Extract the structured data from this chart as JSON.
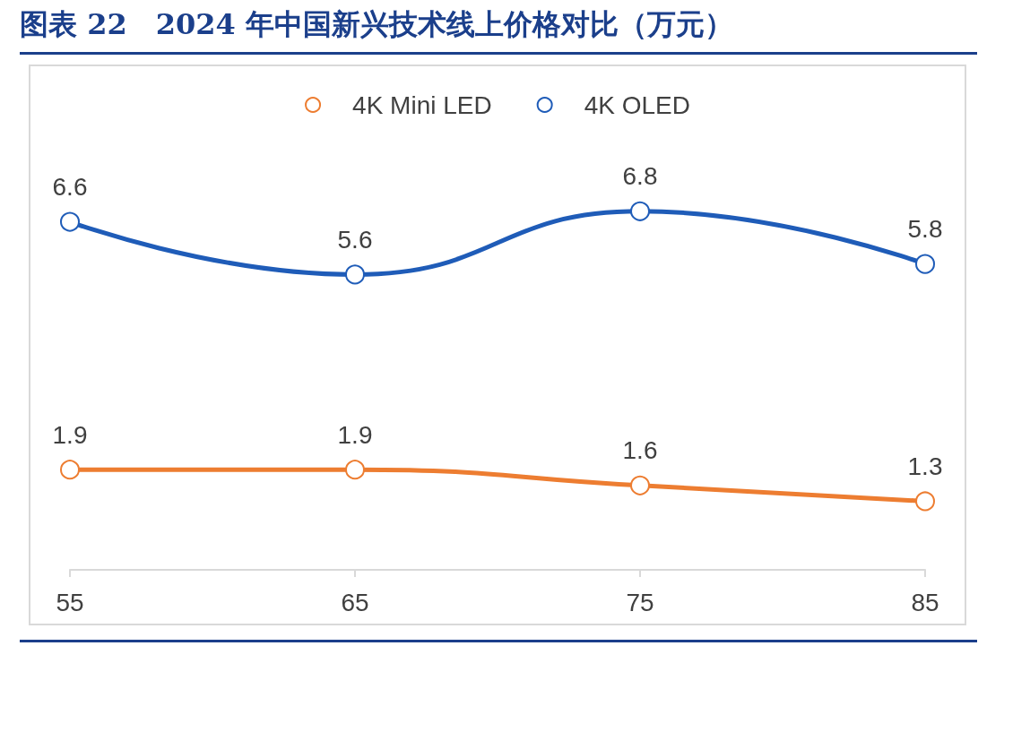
{
  "chart_data": {
    "type": "line",
    "title": "图表 22　2024 年中国新兴技术线上价格对比（万元）",
    "categories": [
      "55",
      "65",
      "75",
      "85"
    ],
    "series": [
      {
        "name": "4K Mini LED",
        "color": "#ed7d31",
        "values": [
          1.9,
          1.9,
          1.6,
          1.3
        ]
      },
      {
        "name": "4K OLED",
        "color": "#1f5cb8",
        "values": [
          6.6,
          5.6,
          6.8,
          5.8
        ]
      }
    ],
    "data_labels": true,
    "legend": "top",
    "marker": "circle",
    "grid": false
  }
}
